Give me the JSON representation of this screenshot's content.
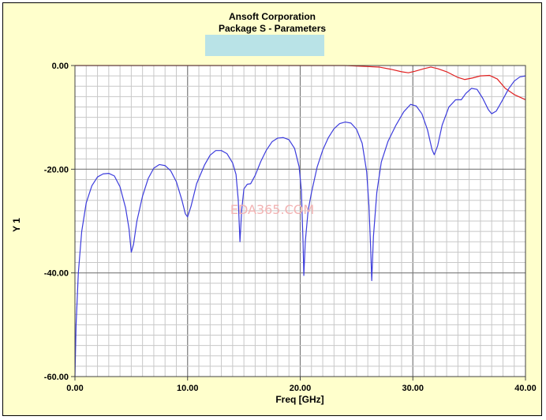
{
  "chart_data": {
    "type": "line",
    "title": "Ansoft Corporation",
    "subtitle": "Package S - Parameters",
    "xlabel": "Freq [GHz]",
    "ylabel": "Y 1",
    "xlim": [
      0,
      40
    ],
    "ylim": [
      -60,
      0
    ],
    "x_ticks": [
      0,
      10,
      20,
      30,
      40
    ],
    "x_tick_labels": [
      "0.00",
      "10.00",
      "20.00",
      "30.00",
      "40.00"
    ],
    "y_ticks": [
      0,
      -20,
      -40,
      -60
    ],
    "y_tick_labels": [
      "0.00",
      "-20.00",
      "-40.00",
      "-60.00"
    ],
    "x_minor_step": 1,
    "y_minor_step": 2,
    "grid": true,
    "legend_box_color": "#b9e3e7",
    "watermark": "EDA365.COM",
    "series": [
      {
        "color": "#e02020",
        "points": [
          [
            0,
            1.7
          ],
          [
            2,
            1.6
          ],
          [
            4,
            1.5
          ],
          [
            6,
            1.4
          ],
          [
            8,
            1.3
          ],
          [
            10,
            1.2
          ],
          [
            12,
            1.1
          ],
          [
            13.5,
            0.9
          ],
          [
            14.4,
            0.6
          ],
          [
            14.8,
            0.2
          ],
          [
            15.2,
            0.8
          ],
          [
            16,
            1.0
          ],
          [
            18,
            0.9
          ],
          [
            20,
            0.6
          ],
          [
            20.5,
            0.1
          ],
          [
            21,
            0.4
          ],
          [
            22,
            0.3
          ],
          [
            24,
            0.1
          ],
          [
            26,
            -0.2
          ],
          [
            27,
            -0.3
          ],
          [
            28,
            -0.7
          ],
          [
            29,
            -1.2
          ],
          [
            29.6,
            -1.4
          ],
          [
            30.2,
            -1.1
          ],
          [
            31,
            -0.6
          ],
          [
            31.6,
            -0.3
          ],
          [
            32.2,
            -0.6
          ],
          [
            33,
            -1.2
          ],
          [
            34,
            -2.3
          ],
          [
            34.6,
            -2.7
          ],
          [
            35.3,
            -2.4
          ],
          [
            36,
            -2.0
          ],
          [
            36.8,
            -1.9
          ],
          [
            37.5,
            -2.6
          ],
          [
            38.2,
            -4.4
          ],
          [
            39,
            -5.6
          ],
          [
            40,
            -6.6
          ]
        ]
      },
      {
        "color": "#3c3cdc",
        "points": [
          [
            0,
            -62
          ],
          [
            0.1,
            -50
          ],
          [
            0.3,
            -40
          ],
          [
            0.6,
            -32
          ],
          [
            1.0,
            -26.5
          ],
          [
            1.5,
            -23.2
          ],
          [
            2.0,
            -21.5
          ],
          [
            2.5,
            -20.9
          ],
          [
            3.0,
            -20.8
          ],
          [
            3.5,
            -21.3
          ],
          [
            4.0,
            -23.4
          ],
          [
            4.5,
            -27.5
          ],
          [
            4.8,
            -31.5
          ],
          [
            5.0,
            -36.0
          ],
          [
            5.2,
            -34.5
          ],
          [
            5.5,
            -30.0
          ],
          [
            6.0,
            -25.2
          ],
          [
            6.5,
            -21.8
          ],
          [
            7.0,
            -19.8
          ],
          [
            7.5,
            -19.1
          ],
          [
            8.0,
            -19.3
          ],
          [
            8.5,
            -20.3
          ],
          [
            9.0,
            -22.4
          ],
          [
            9.5,
            -26.0
          ],
          [
            9.8,
            -28.6
          ],
          [
            10.0,
            -29.2
          ],
          [
            10.3,
            -27.2
          ],
          [
            10.8,
            -22.8
          ],
          [
            11.5,
            -19.2
          ],
          [
            12.0,
            -17.3
          ],
          [
            12.5,
            -16.4
          ],
          [
            13.0,
            -16.4
          ],
          [
            13.5,
            -17.0
          ],
          [
            14.0,
            -18.8
          ],
          [
            14.3,
            -21.0
          ],
          [
            14.5,
            -26.0
          ],
          [
            14.65,
            -34.0
          ],
          [
            14.8,
            -28.0
          ],
          [
            15.0,
            -23.8
          ],
          [
            15.3,
            -22.9
          ],
          [
            15.6,
            -22.8
          ],
          [
            16.0,
            -21.2
          ],
          [
            16.5,
            -18.5
          ],
          [
            17.0,
            -16.3
          ],
          [
            17.5,
            -14.7
          ],
          [
            18.0,
            -14.0
          ],
          [
            18.5,
            -13.9
          ],
          [
            19.0,
            -14.3
          ],
          [
            19.5,
            -16.0
          ],
          [
            19.9,
            -19.5
          ],
          [
            20.1,
            -24.0
          ],
          [
            20.25,
            -34.0
          ],
          [
            20.32,
            -40.5
          ],
          [
            20.45,
            -34.0
          ],
          [
            20.7,
            -28.0
          ],
          [
            21.0,
            -24.5
          ],
          [
            21.5,
            -19.6
          ],
          [
            22.0,
            -16.3
          ],
          [
            22.5,
            -13.9
          ],
          [
            23.0,
            -12.2
          ],
          [
            23.5,
            -11.2
          ],
          [
            24.0,
            -10.9
          ],
          [
            24.5,
            -11.1
          ],
          [
            25.0,
            -12.3
          ],
          [
            25.5,
            -15.0
          ],
          [
            25.9,
            -20.5
          ],
          [
            26.1,
            -27.0
          ],
          [
            26.25,
            -35.0
          ],
          [
            26.35,
            -41.5
          ],
          [
            26.5,
            -33.0
          ],
          [
            26.8,
            -24.5
          ],
          [
            27.2,
            -18.6
          ],
          [
            27.8,
            -14.6
          ],
          [
            28.5,
            -11.5
          ],
          [
            29.2,
            -8.9
          ],
          [
            29.8,
            -7.5
          ],
          [
            30.3,
            -7.8
          ],
          [
            30.8,
            -9.3
          ],
          [
            31.3,
            -12.4
          ],
          [
            31.7,
            -16.2
          ],
          [
            31.9,
            -17.2
          ],
          [
            32.2,
            -15.5
          ],
          [
            32.6,
            -11.5
          ],
          [
            33.2,
            -8.0
          ],
          [
            33.8,
            -6.6
          ],
          [
            34.3,
            -6.6
          ],
          [
            34.7,
            -5.4
          ],
          [
            35.2,
            -4.4
          ],
          [
            35.7,
            -4.6
          ],
          [
            36.2,
            -6.3
          ],
          [
            36.7,
            -8.5
          ],
          [
            37.0,
            -9.3
          ],
          [
            37.4,
            -8.8
          ],
          [
            37.9,
            -6.9
          ],
          [
            38.5,
            -4.5
          ],
          [
            39.0,
            -3.0
          ],
          [
            39.5,
            -2.2
          ],
          [
            40.0,
            -2.0
          ]
        ]
      }
    ]
  }
}
